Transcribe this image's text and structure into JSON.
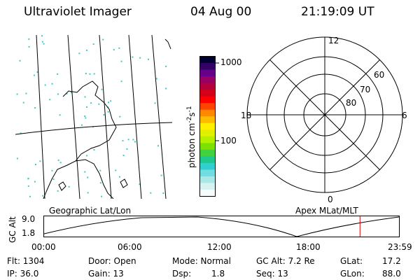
{
  "header": {
    "title": "Ultraviolet Imager",
    "date": "04 Aug 00",
    "time": "21:19:09 UT"
  },
  "left_panel": {
    "label": "Geographic Lat/Lon",
    "line_color": "#000000",
    "noise_color": "#40c8c8"
  },
  "colorbar": {
    "unit_label": "photon cm",
    "unit_sup1": "-2",
    "unit_mid": "s",
    "unit_sup2": "-1",
    "tick_high": "1000",
    "tick_low": "100",
    "colors": [
      "#000033",
      "#330066",
      "#66008a",
      "#990066",
      "#b4003c",
      "#d2001a",
      "#ff0000",
      "#ff4400",
      "#ff8800",
      "#ffbb00",
      "#ffee00",
      "#e0f000",
      "#b4f000",
      "#7ee000",
      "#40d040",
      "#20c890",
      "#30d0d0",
      "#70dde0",
      "#aae8e8",
      "#d8f2f2",
      "#f6fcfc"
    ]
  },
  "polar_panel": {
    "label": "Apex MLat/MLT",
    "mlt_labels": {
      "top": "12",
      "left": "18",
      "right": "6",
      "bottom": "0"
    },
    "lat_labels": [
      "60",
      "70",
      "80"
    ]
  },
  "altitude_plot": {
    "ylabel": "GC Alt",
    "y_ticks": [
      "9.0",
      "1.8"
    ],
    "x_ticks": [
      "00:00",
      "06:00",
      "12:00",
      "18:00",
      "23:59"
    ],
    "marker_color": "#dd0000",
    "marker_hour": 21.32
  },
  "info": {
    "flt": "Flt: 1304",
    "ip": "IP: 36.0",
    "door": "Door: Open",
    "gain": "Gain: 13",
    "mode": "Mode: Normal",
    "dsp_label": "Dsp:",
    "dsp_value": "1.8",
    "gcalt": "GC Alt: 7.2 Re",
    "seq": "Seq: 13",
    "glat_label": "GLat:",
    "glat_value": "17.2",
    "glon_label": "GLon:",
    "glon_value": "88.0"
  }
}
